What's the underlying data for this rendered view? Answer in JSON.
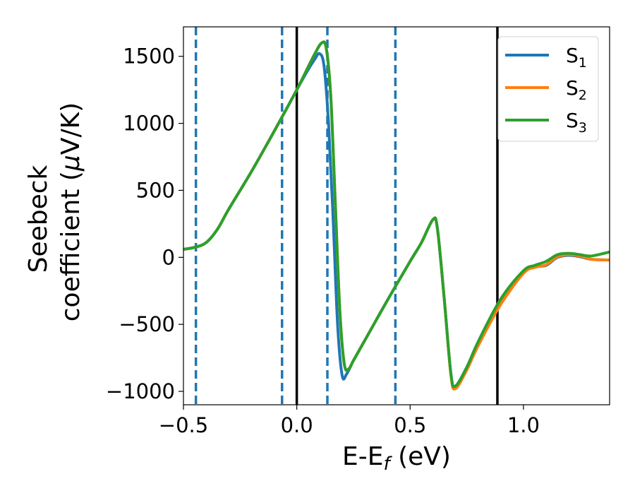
{
  "chart_data": {
    "type": "line",
    "xlabel": "E-E",
    "xlabel_sub": "f",
    "xlabel_unit": " (eV)",
    "ylabel_line1": "Seebeck",
    "ylabel_line2": "coefficient  (",
    "ylabel_mu": "μ",
    "ylabel_unit": "V/K)",
    "xlim": [
      -0.5,
      1.38
    ],
    "ylim": [
      -1100,
      1720
    ],
    "xticks": [
      -0.5,
      0.0,
      0.5,
      1.0
    ],
    "xtick_labels": [
      "−0.5",
      "0.0",
      "0.5",
      "1.0"
    ],
    "yticks": [
      -1000,
      -500,
      0,
      500,
      1000,
      1500
    ],
    "ytick_labels": [
      "−1000",
      "−500",
      "0",
      "500",
      "1000",
      "1500"
    ],
    "grid": false,
    "legend_position": "top-right",
    "vlines_dashed": [
      -0.445,
      -0.065,
      0.135,
      0.435
    ],
    "vlines_solid": [
      0.0,
      0.885
    ],
    "series": [
      {
        "name": "S",
        "sub": "1",
        "color": "#1f77b4",
        "x": [
          -0.5,
          -0.45,
          -0.4,
          -0.35,
          -0.3,
          -0.2,
          -0.1,
          0.0,
          0.05,
          0.08,
          0.1,
          0.12,
          0.14,
          0.16,
          0.18,
          0.2,
          0.22,
          0.25,
          0.3,
          0.4,
          0.5,
          0.55,
          0.6,
          0.62,
          0.65,
          0.68,
          0.7,
          0.75,
          0.8,
          0.9,
          1.0,
          1.05,
          1.1,
          1.15,
          1.2,
          1.25,
          1.3,
          1.38
        ],
        "y": [
          60,
          75,
          110,
          210,
          360,
          640,
          940,
          1250,
          1400,
          1480,
          1520,
          1430,
          1000,
          300,
          -500,
          -880,
          -870,
          -770,
          -620,
          -320,
          -30,
          110,
          280,
          220,
          -300,
          -870,
          -960,
          -820,
          -640,
          -330,
          -110,
          -70,
          -60,
          0,
          15,
          5,
          -15,
          -20
        ]
      },
      {
        "name": "S",
        "sub": "2",
        "color": "#ff7f0e",
        "x": [
          -0.5,
          -0.45,
          -0.4,
          -0.35,
          -0.3,
          -0.2,
          -0.1,
          0.0,
          0.05,
          0.08,
          0.11,
          0.13,
          0.15,
          0.17,
          0.19,
          0.21,
          0.23,
          0.25,
          0.3,
          0.4,
          0.5,
          0.55,
          0.6,
          0.62,
          0.65,
          0.68,
          0.7,
          0.75,
          0.8,
          0.9,
          1.0,
          1.05,
          1.1,
          1.15,
          1.2,
          1.25,
          1.3,
          1.38
        ],
        "y": [
          60,
          75,
          110,
          210,
          360,
          640,
          940,
          1250,
          1420,
          1520,
          1600,
          1560,
          1200,
          400,
          -400,
          -800,
          -830,
          -770,
          -620,
          -320,
          -30,
          110,
          280,
          220,
          -300,
          -880,
          -980,
          -840,
          -660,
          -350,
          -120,
          -75,
          -55,
          5,
          20,
          10,
          -15,
          -20
        ]
      },
      {
        "name": "S",
        "sub": "3",
        "color": "#2ca02c",
        "x": [
          -0.5,
          -0.45,
          -0.4,
          -0.35,
          -0.3,
          -0.2,
          -0.1,
          0.0,
          0.05,
          0.08,
          0.11,
          0.13,
          0.15,
          0.17,
          0.19,
          0.21,
          0.23,
          0.25,
          0.3,
          0.4,
          0.5,
          0.55,
          0.6,
          0.62,
          0.65,
          0.68,
          0.7,
          0.75,
          0.8,
          0.9,
          1.0,
          1.05,
          1.1,
          1.15,
          1.2,
          1.25,
          1.3,
          1.38
        ],
        "y": [
          60,
          75,
          110,
          210,
          360,
          640,
          940,
          1250,
          1420,
          1520,
          1600,
          1560,
          1200,
          400,
          -400,
          -800,
          -830,
          -770,
          -620,
          -320,
          -30,
          110,
          280,
          220,
          -300,
          -870,
          -960,
          -820,
          -630,
          -310,
          -100,
          -60,
          -30,
          20,
          30,
          20,
          10,
          40
        ]
      }
    ]
  }
}
